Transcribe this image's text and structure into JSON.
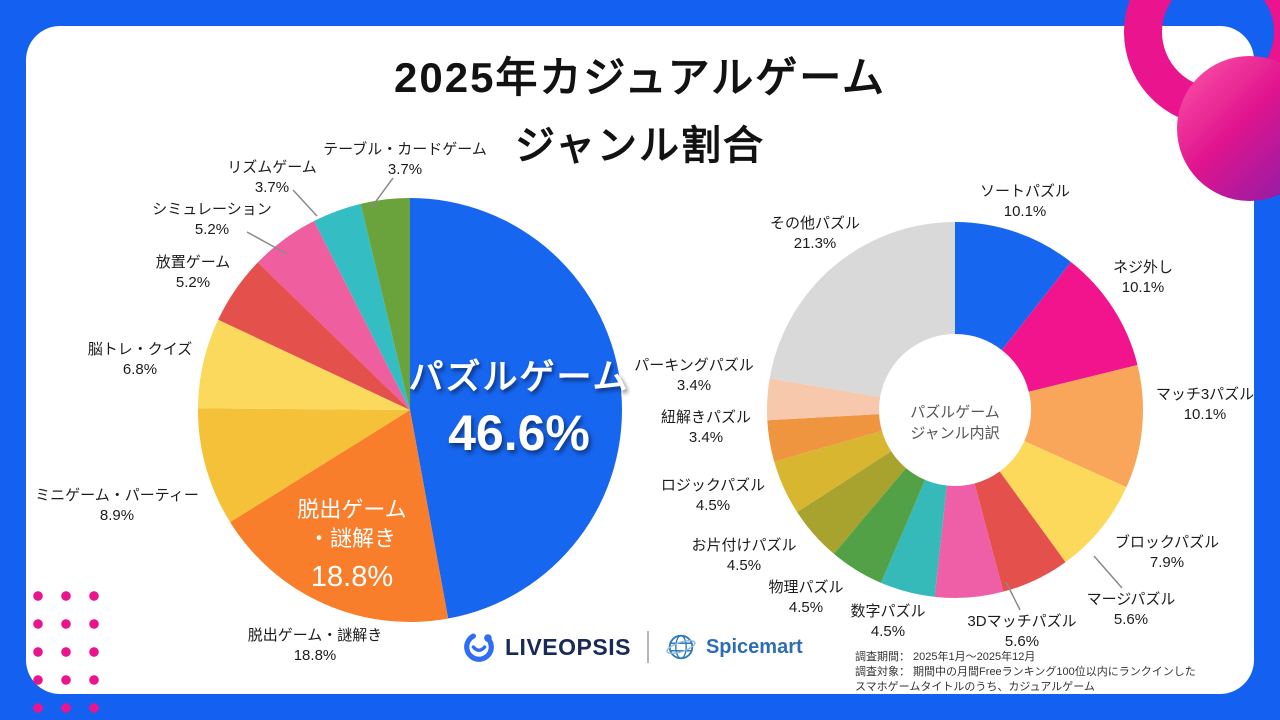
{
  "title": {
    "line1": "2025年カジュアルゲーム",
    "line2": "ジャンル割合"
  },
  "chart_data": [
    {
      "type": "pie",
      "title": "2025年カジュアルゲーム ジャンル割合",
      "categories": [
        "パズルゲーム",
        "脱出ゲーム・謎解き",
        "ミニゲーム・パーティー",
        "脳トレ・クイズ",
        "放置ゲーム",
        "シミュレーション",
        "リズムゲーム",
        "テーブル・カードゲーム"
      ],
      "values": [
        46.6,
        18.8,
        8.9,
        6.8,
        5.2,
        5.2,
        3.7,
        3.7
      ],
      "colors": [
        "#1766f0",
        "#f97e2b",
        "#f5c138",
        "#fbd95c",
        "#e4504b",
        "#ef5f9f",
        "#35bdc4",
        "#6aa23c"
      ],
      "unit": "%",
      "start_angle": "top",
      "direction": "clockwise",
      "legend": "none"
    },
    {
      "type": "donut",
      "title": "パズルゲーム ジャンル内訳",
      "categories": [
        "ソートパズル",
        "ネジ外し",
        "マッチ3パズル",
        "ブロックパズル",
        "マージパズル",
        "3Dマッチパズル",
        "数字パズル",
        "物理パズル",
        "お片付けパズル",
        "ロジックパズル",
        "紐解きパズル",
        "パーキングパズル",
        "その他パズル"
      ],
      "values": [
        10.1,
        10.1,
        10.1,
        7.9,
        5.6,
        5.6,
        4.5,
        4.5,
        4.5,
        4.5,
        3.4,
        3.4,
        21.3
      ],
      "colors": [
        "#1766f0",
        "#f2148c",
        "#f9a65a",
        "#fcd95b",
        "#e4504b",
        "#ee5fa8",
        "#35b9b9",
        "#53a146",
        "#a8a32f",
        "#d9b62f",
        "#f0953f",
        "#f8c8ad",
        "#d9d9d9"
      ],
      "unit": "%",
      "start_angle": "top",
      "direction": "clockwise",
      "legend": "none",
      "center_label_line1": "パズルゲーム",
      "center_label_line2": "ジャンル内訳"
    }
  ],
  "left_chart_inner": {
    "main_name": "パズルゲーム",
    "main_pct": "46.6%",
    "secondary_line1": "脱出ゲーム",
    "secondary_line2": "・謎解き",
    "secondary_pct": "18.8%"
  },
  "footer": {
    "logo1": "LIVEOPSIS",
    "logo2": "Spicemart",
    "note_line1": "調査期間： 2025年1月～2025年12月",
    "note_line2": "調査対象： 期間中の月間Freeランキング100位以内にランクインした",
    "note_line3": "スマホゲームタイトルのうち、カジュアルゲーム"
  }
}
